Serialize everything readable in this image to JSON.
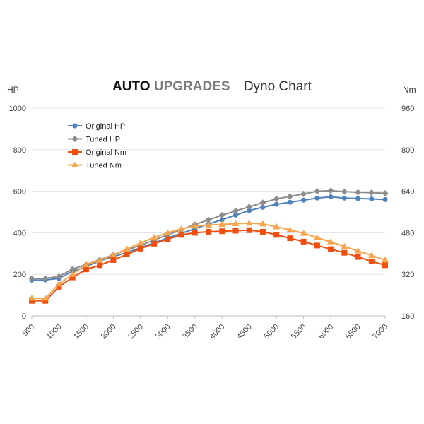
{
  "title": {
    "brand_primary": "AUTO",
    "brand_secondary": "UPGRADES",
    "subtitle": "Dyno Chart"
  },
  "chart_data": {
    "type": "line",
    "title": "AUTO UPGRADES Dyno Chart",
    "xlabel": "",
    "ylabel_left": "HP",
    "ylabel_right": "Nm",
    "ylim_left": [
      0,
      1000
    ],
    "ylim_right": [
      160,
      960
    ],
    "xlim": [
      500,
      7000
    ],
    "x_ticks": [
      "500",
      "1000",
      "1500",
      "2000",
      "2500",
      "3000",
      "3500",
      "4000",
      "4500",
      "5000",
      "5500",
      "6000",
      "6500",
      "7000"
    ],
    "y_ticks_left": [
      "0",
      "200",
      "400",
      "600",
      "800",
      "1000"
    ],
    "y_ticks_right": [
      "160",
      "320",
      "480",
      "640",
      "800",
      "960"
    ],
    "x": [
      500,
      750,
      1000,
      1250,
      1500,
      1750,
      2000,
      2250,
      2500,
      2750,
      3000,
      3250,
      3500,
      3750,
      4000,
      4250,
      4500,
      4750,
      5000,
      5250,
      5500,
      5750,
      6000,
      6250,
      6500,
      6750,
      7000
    ],
    "legend_position": "top-left",
    "grid": true,
    "series": [
      {
        "name": "Original HP",
        "axis": "left",
        "color": "#4f81bd",
        "marker": "circle",
        "values": [
          172,
          173,
          180,
          215,
          237,
          265,
          285,
          305,
          328,
          352,
          375,
          397,
          420,
          442,
          463,
          485,
          507,
          523,
          537,
          547,
          557,
          567,
          573,
          567,
          565,
          563,
          560
        ]
      },
      {
        "name": "Tuned HP",
        "axis": "left",
        "color": "#8c8c8c",
        "marker": "diamond",
        "values": [
          180,
          180,
          190,
          225,
          247,
          270,
          295,
          317,
          340,
          365,
          390,
          415,
          440,
          462,
          485,
          505,
          525,
          545,
          563,
          575,
          587,
          600,
          603,
          598,
          595,
          593,
          590
        ]
      },
      {
        "name": "Original Nm",
        "axis": "right",
        "color": "#f04e0e",
        "marker": "square",
        "values": [
          218,
          218,
          272,
          308,
          339,
          355,
          375,
          397,
          419,
          438,
          455,
          472,
          480,
          484,
          486,
          488,
          490,
          484,
          472,
          459,
          446,
          431,
          417,
          403,
          387,
          370,
          355
        ]
      },
      {
        "name": "Tuned Nm",
        "axis": "right",
        "color": "#f7a54d",
        "marker": "triangle",
        "values": [
          228,
          228,
          283,
          320,
          357,
          374,
          395,
          417,
          441,
          462,
          480,
          495,
          506,
          510,
          512,
          515,
          517,
          514,
          503,
          491,
          478,
          461,
          445,
          427,
          410,
          393,
          375
        ]
      }
    ]
  }
}
